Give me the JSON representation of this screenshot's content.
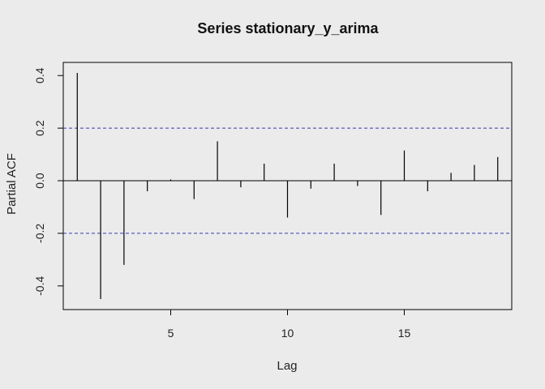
{
  "chart_data": {
    "type": "bar",
    "title": "Series  stationary_y_arima",
    "xlabel": "Lag",
    "ylabel": "Partial ACF",
    "x": [
      1,
      2,
      3,
      4,
      5,
      6,
      7,
      8,
      9,
      10,
      11,
      12,
      13,
      14,
      15,
      16,
      17,
      18,
      19
    ],
    "values": [
      0.41,
      -0.45,
      -0.32,
      -0.04,
      0.005,
      -0.07,
      0.15,
      -0.025,
      0.065,
      -0.14,
      -0.03,
      0.065,
      -0.02,
      -0.13,
      0.115,
      -0.04,
      0.03,
      0.06,
      0.09
    ],
    "confidence_bound": 0.2,
    "xlim": [
      0.4,
      19.6
    ],
    "ylim": [
      -0.49,
      0.45
    ],
    "x_ticks": [
      5,
      10,
      15
    ],
    "y_ticks": [
      -0.4,
      -0.2,
      0.0,
      0.2,
      0.4
    ],
    "x_tick_labels": [
      "5",
      "10",
      "15"
    ],
    "y_tick_labels": [
      "-0.4",
      "-0.2",
      "0.0",
      "0.2",
      "0.4"
    ],
    "grid": false,
    "colors": {
      "background": "#ebebeb",
      "spike": "#000000",
      "confidence_line": "#3b3bb0",
      "axis": "#000000"
    }
  }
}
